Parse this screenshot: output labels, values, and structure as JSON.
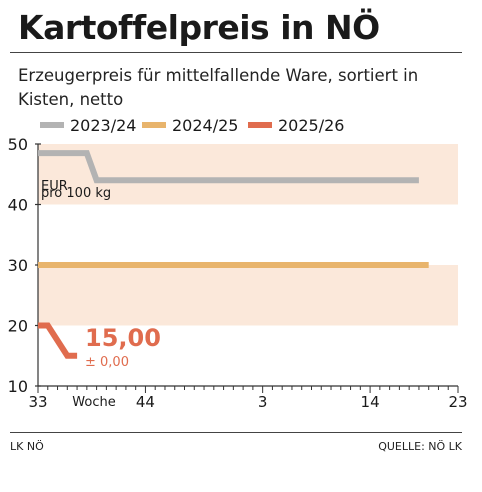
{
  "header": {
    "title": "Kartoffelpreis in NÖ",
    "subtitle": "Erzeugerpreis für mittelfallende Ware, sortiert in Kisten, netto"
  },
  "footer": {
    "left": "LK NÖ",
    "right": "QUELLE: NÖ LK"
  },
  "colors": {
    "background_band": "#fbe8da",
    "series_2023_24": "#b3b3b3",
    "series_2024_25": "#e8b46c",
    "series_2025_26": "#e06c4e",
    "text": "#1a1a1a"
  },
  "chart_data": {
    "type": "line",
    "xlabel": "Woche",
    "ylabel": "",
    "unit_label_line1": "EUR",
    "unit_label_line2": "pro 100 kg",
    "ylim": [
      10,
      50
    ],
    "yticks": [
      10,
      20,
      30,
      40,
      50
    ],
    "x_ticks": [
      "33",
      "44",
      "3",
      "14",
      "23"
    ],
    "x_tick_index": [
      0,
      11,
      23,
      34,
      43
    ],
    "bands": [
      [
        40,
        50
      ],
      [
        20,
        30
      ]
    ],
    "legend_position": "top",
    "series": [
      {
        "name": "2023/24",
        "x_index": [
          0,
          5,
          6,
          39
        ],
        "values": [
          48.5,
          48.5,
          44,
          44
        ]
      },
      {
        "name": "2024/25",
        "x_index": [
          0,
          40
        ],
        "values": [
          30,
          30
        ]
      },
      {
        "name": "2025/26",
        "x_index": [
          0,
          1,
          3,
          4
        ],
        "values": [
          20,
          20,
          15,
          15
        ]
      }
    ],
    "latest_value_label": "15,00",
    "latest_change_label": "± 0,00"
  }
}
